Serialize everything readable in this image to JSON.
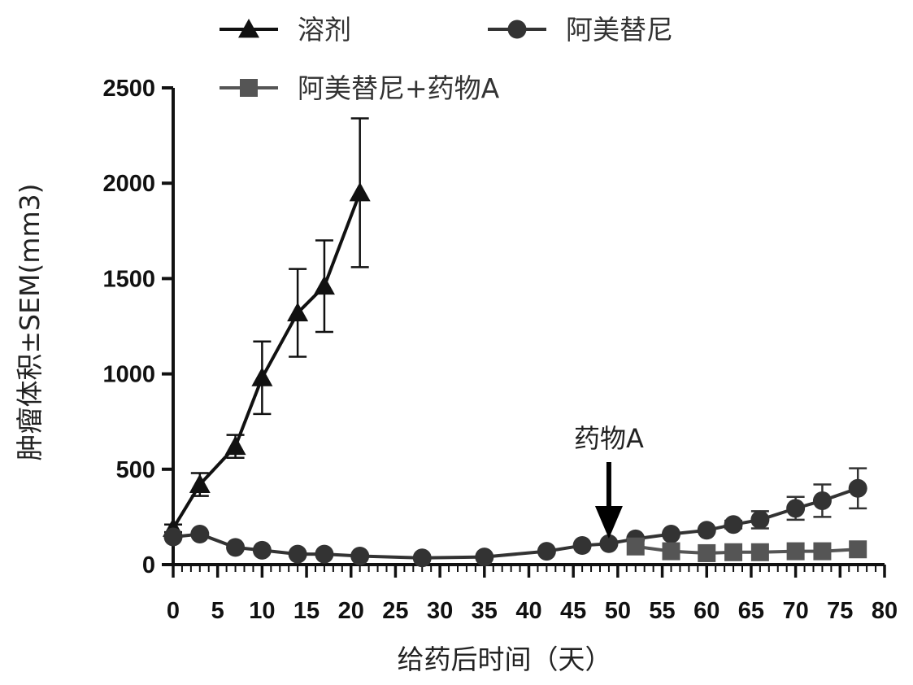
{
  "chart_data": {
    "type": "line",
    "title": "",
    "xlabel": "给药后时间（天）",
    "ylabel": "肿瘤体积±SEM(mm3)",
    "xlim": [
      0,
      80
    ],
    "ylim": [
      0,
      2500
    ],
    "x_ticks": [
      0,
      5,
      10,
      15,
      20,
      25,
      30,
      35,
      40,
      45,
      50,
      55,
      60,
      65,
      70,
      75,
      80
    ],
    "y_ticks": [
      0,
      500,
      1000,
      1500,
      2000,
      2500
    ],
    "legend_position": "top",
    "series": [
      {
        "name": "溶剂",
        "marker": "triangle",
        "color": "#111111",
        "x": [
          0,
          3,
          7,
          10,
          14,
          17,
          21
        ],
        "y": [
          190,
          420,
          620,
          980,
          1320,
          1460,
          1950
        ],
        "err": [
          20,
          60,
          60,
          190,
          230,
          240,
          390
        ]
      },
      {
        "name": "阿美替尼",
        "marker": "circle",
        "color": "#333333",
        "x": [
          0,
          3,
          7,
          10,
          14,
          17,
          21,
          28,
          35,
          42,
          46,
          49,
          52,
          56,
          60,
          63,
          66,
          70,
          73,
          77
        ],
        "y": [
          145,
          160,
          90,
          75,
          55,
          55,
          45,
          35,
          40,
          70,
          100,
          110,
          135,
          160,
          180,
          210,
          235,
          295,
          335,
          400
        ],
        "err": [
          0,
          0,
          0,
          0,
          0,
          0,
          0,
          0,
          0,
          0,
          0,
          0,
          0,
          0,
          0,
          20,
          45,
          60,
          85,
          105
        ]
      },
      {
        "name": "阿美替尼+药物A",
        "marker": "square",
        "color": "#555555",
        "x": [
          52,
          56,
          60,
          63,
          66,
          70,
          73,
          77
        ],
        "y": [
          95,
          70,
          60,
          65,
          65,
          70,
          70,
          80
        ],
        "err": [
          0,
          0,
          0,
          0,
          0,
          0,
          0,
          0
        ]
      }
    ],
    "annotation": {
      "text": "药物A",
      "x": 49,
      "arrow": "down"
    }
  }
}
